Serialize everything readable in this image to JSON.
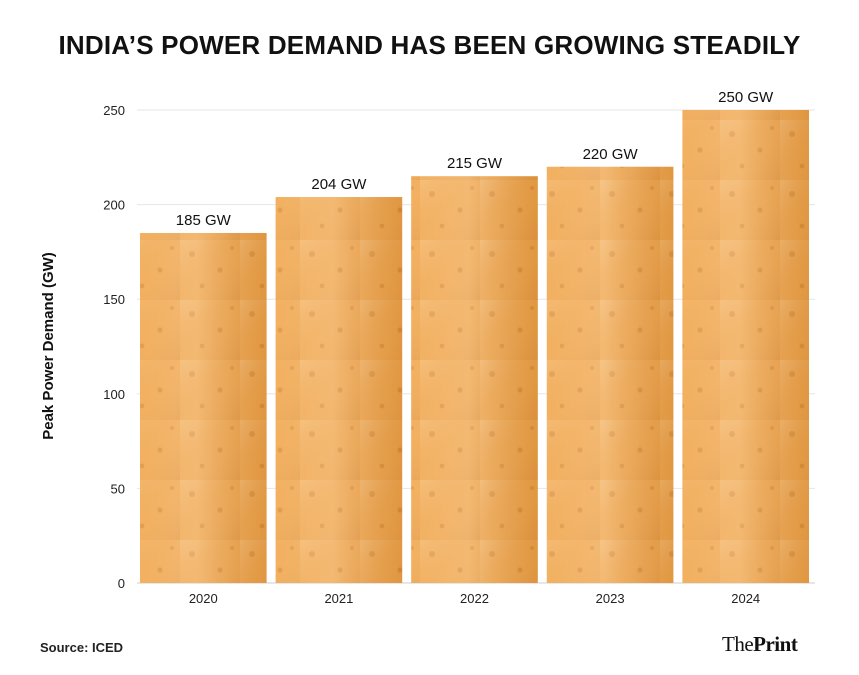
{
  "title": "INDIA’S POWER DEMAND HAS BEEN GROWING STEADILY",
  "source": "Source: ICED",
  "brand": {
    "part1": "The",
    "part2": "Print"
  },
  "colors": {
    "bar_fill": "#f0a54a",
    "bar_light": "#f7c27f",
    "bar_dark": "#d98a2f",
    "grid": "#e6e6e6",
    "axis": "#cfcfcf",
    "text": "#111111"
  },
  "chart_data": {
    "type": "bar",
    "title": "INDIA’S POWER DEMAND HAS BEEN GROWING STEADILY",
    "xlabel": "",
    "ylabel": "Peak Power Demand (GW)",
    "ylim": [
      0,
      250
    ],
    "yticks": [
      0,
      50,
      100,
      150,
      200,
      250
    ],
    "categories": [
      "2020",
      "2021",
      "2022",
      "2023",
      "2024"
    ],
    "values": [
      185,
      204,
      215,
      220,
      250
    ],
    "data_labels": [
      "185 GW",
      "204 GW",
      "215 GW",
      "220 GW",
      "250 GW"
    ],
    "grid": true,
    "legend": "none"
  }
}
